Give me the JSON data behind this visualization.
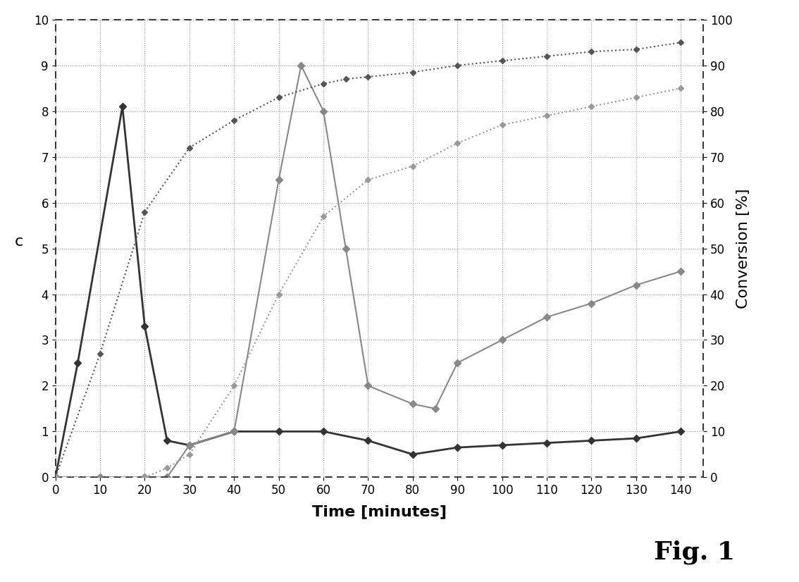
{
  "title": "",
  "xlabel": "Time [minutes]",
  "ylabel_left": "c",
  "ylabel_right": "Conversion [%]",
  "fig_label": "Fig. 1",
  "xlim": [
    0,
    145
  ],
  "ylim_left": [
    0,
    10
  ],
  "ylim_right": [
    0,
    100
  ],
  "xticks": [
    0,
    10,
    20,
    30,
    40,
    50,
    60,
    70,
    80,
    90,
    100,
    110,
    120,
    130,
    140
  ],
  "yticks_left": [
    0,
    1,
    2,
    3,
    4,
    5,
    6,
    7,
    8,
    9,
    10
  ],
  "yticks_right": [
    0,
    10,
    20,
    30,
    40,
    50,
    60,
    70,
    80,
    90,
    100
  ],
  "series": [
    {
      "name": "series1_solid_peak15",
      "x": [
        0,
        5,
        15,
        20,
        25,
        30,
        40,
        50,
        60,
        70,
        80,
        90,
        100,
        110,
        120,
        130,
        140
      ],
      "y": [
        0,
        2.5,
        8.1,
        3.3,
        0.8,
        0.7,
        1.0,
        1.0,
        1.0,
        0.8,
        0.5,
        0.65,
        0.7,
        0.75,
        0.8,
        0.85,
        1.0
      ],
      "color": "#333333",
      "linestyle": "-",
      "marker": "D",
      "markersize": 5,
      "linewidth": 2.0,
      "axis": "left"
    },
    {
      "name": "series2_solid_peak55",
      "x": [
        0,
        10,
        20,
        25,
        30,
        40,
        50,
        55,
        60,
        65,
        70,
        80,
        85,
        90,
        100,
        110,
        120,
        130,
        140
      ],
      "y": [
        0,
        0,
        0,
        0.0,
        0.7,
        1.0,
        6.5,
        9.0,
        8.0,
        5.0,
        2.0,
        1.6,
        1.5,
        2.5,
        3.0,
        3.5,
        3.8,
        4.2,
        4.5
      ],
      "color": "#888888",
      "linestyle": "-",
      "marker": "D",
      "markersize": 5,
      "linewidth": 1.5,
      "axis": "left"
    },
    {
      "name": "conversion1_dotted_high",
      "x": [
        0,
        10,
        20,
        30,
        40,
        50,
        60,
        65,
        70,
        80,
        90,
        100,
        110,
        120,
        130,
        140
      ],
      "y": [
        0,
        27,
        58,
        72,
        78,
        83,
        86,
        87,
        87.5,
        88.5,
        90,
        91,
        92,
        93,
        93.5,
        95
      ],
      "color": "#555555",
      "linestyle": ":",
      "marker": "D",
      "markersize": 4,
      "linewidth": 1.5,
      "axis": "right"
    },
    {
      "name": "conversion2_dotted_lower",
      "x": [
        0,
        20,
        25,
        30,
        40,
        50,
        60,
        70,
        80,
        90,
        100,
        110,
        120,
        130,
        140
      ],
      "y": [
        0,
        0,
        2,
        5,
        20,
        40,
        57,
        65,
        68,
        73,
        77,
        79,
        81,
        83,
        85
      ],
      "color": "#999999",
      "linestyle": ":",
      "marker": "D",
      "markersize": 4,
      "linewidth": 1.5,
      "axis": "right"
    }
  ],
  "grid_color": "#999999",
  "grid_linestyle": ":",
  "background_color": "#ffffff",
  "font_size_label": 16,
  "font_size_tick": 12,
  "font_size_fig_label": 26
}
